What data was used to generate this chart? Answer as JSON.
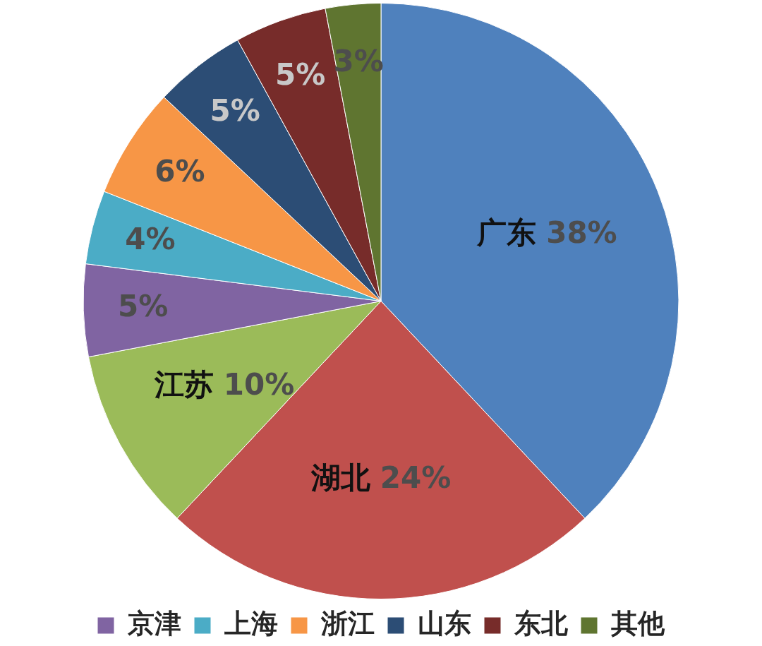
{
  "chart_data": {
    "type": "pie",
    "categories": [
      "广东",
      "湖北",
      "江苏",
      "京津",
      "上海",
      "浙江",
      "山东",
      "东北",
      "其他"
    ],
    "values": [
      38,
      24,
      10,
      5,
      4,
      6,
      5,
      5,
      3
    ],
    "colors": [
      "#4f81bd",
      "#c0504d",
      "#9bbb59",
      "#8064a2",
      "#4bacc6",
      "#f79646",
      "#2c4d75",
      "#772c2a",
      "#5f7530"
    ],
    "value_labels": [
      "38%",
      "24%",
      "10%",
      "5%",
      "4%",
      "6%",
      "5%",
      "5%",
      "3%"
    ],
    "legend": "bottom"
  }
}
